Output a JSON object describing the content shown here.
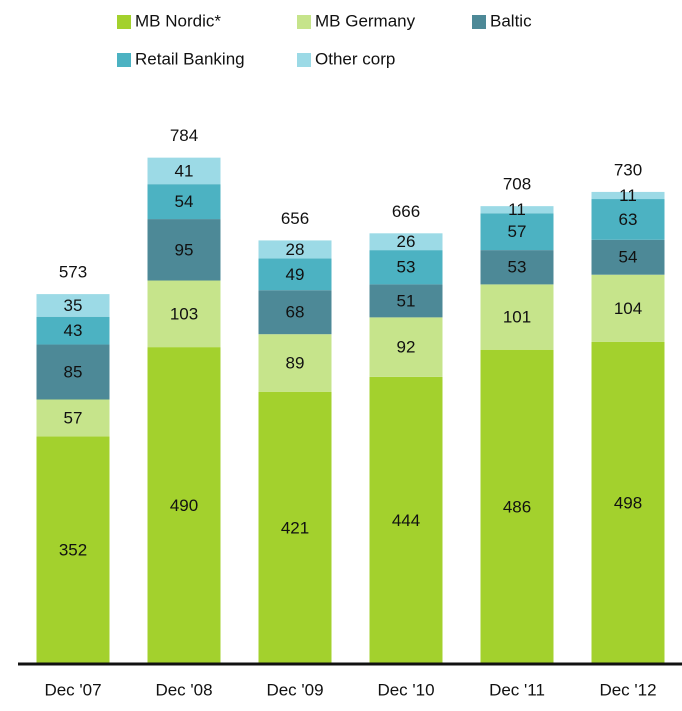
{
  "chart_data": {
    "type": "stacked_bar",
    "categories": [
      "Dec '07",
      "Dec '08",
      "Dec '09",
      "Dec '10",
      "Dec '11",
      "Dec '12"
    ],
    "series": [
      {
        "name": "MB Nordic*",
        "color": "#a3d12d",
        "values": [
          352,
          490,
          421,
          444,
          486,
          498
        ]
      },
      {
        "name": "MB Germany",
        "color": "#c6e48b",
        "values": [
          57,
          103,
          89,
          92,
          101,
          104
        ]
      },
      {
        "name": "Baltic",
        "color": "#4d8997",
        "values": [
          85,
          95,
          68,
          51,
          53,
          54
        ]
      },
      {
        "name": "Retail Banking",
        "color": "#4cb2c2",
        "values": [
          43,
          54,
          49,
          53,
          57,
          63
        ]
      },
      {
        "name": "Other corp",
        "color": "#9cdae6",
        "values": [
          35,
          41,
          28,
          26,
          11,
          11
        ]
      }
    ],
    "totals": [
      573,
      784,
      656,
      666,
      708,
      730
    ]
  }
}
